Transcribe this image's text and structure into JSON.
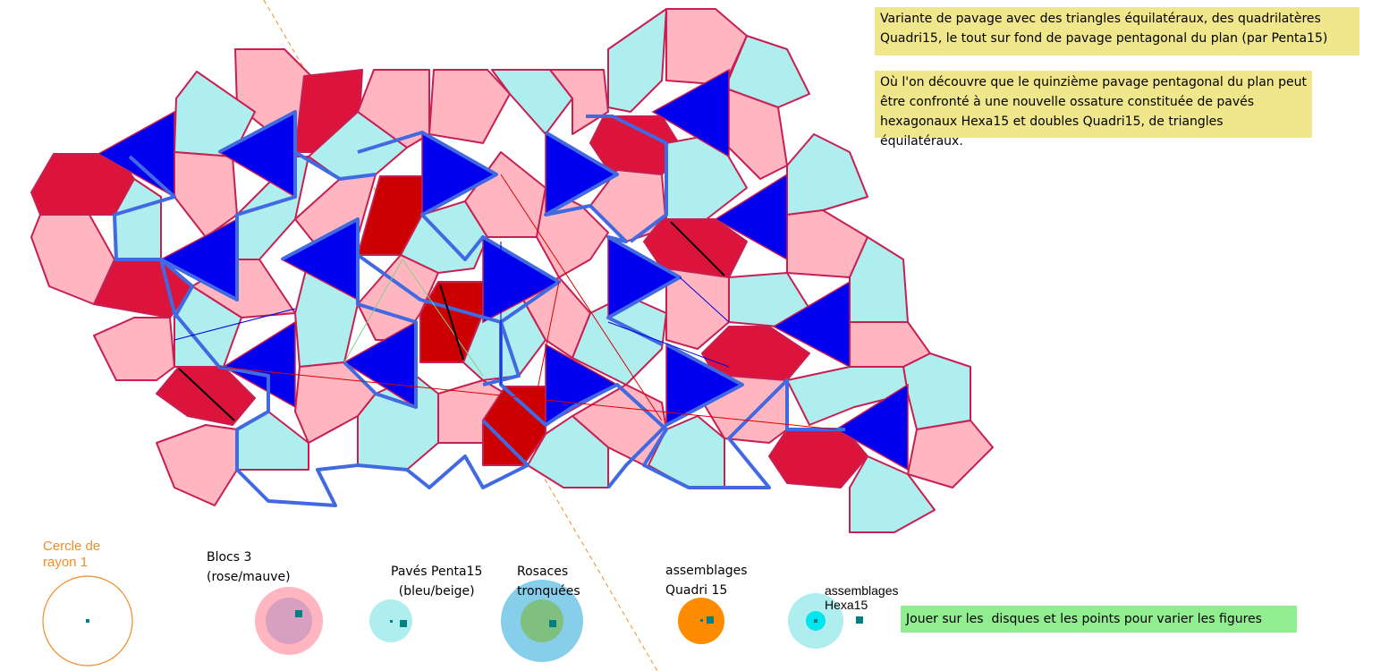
{
  "notes": {
    "main_line1": "Variante de pavage avec des triangles équilatéraux, des quadrilatères",
    "main_line2": "Quadri15, le tout sur fond de pavage pentagonal du plan (par Penta15)",
    "discovery_line1": "Où l'on découvre que le quinzième pavage pentagonal du plan peut",
    "discovery_line2": "être confronté à une nouvelle ossature constituée de pavés",
    "discovery_line3": "hexagonaux Hexa15 et doubles Quadri15, de triangles équilatéraux.",
    "hint": "Jouer sur les  disques et les points pour varier les figures"
  },
  "controls": {
    "cercle": {
      "line1": "Cercle de",
      "line2": "rayon 1"
    },
    "blocs": {
      "line1": "Blocs 3",
      "line2": "(rose/mauve)"
    },
    "penta": {
      "line1": "Pavés Penta15",
      "line2": "(bleu/beige)"
    },
    "rosaces": {
      "line1": "Rosaces",
      "line2": "tronquées"
    },
    "quadri": {
      "line1": "assemblages",
      "line2": "Quadri 15"
    },
    "hexa": {
      "line1": "assemblages",
      "line2": "Hexa15"
    }
  },
  "colors": {
    "turquoise_pentagon": "#afeeee",
    "pink_pentagon": "#ffb6c1",
    "crimson_quad": "#dc143c",
    "red_quad": "#cc0000",
    "blue_triangle": "#0000ee",
    "hexa_outline": "#4169e1",
    "tile_edge": "#c71f52",
    "circle_orange": "#f28c28",
    "note_yellow": "#f0e68c",
    "note_green": "#90ee90"
  }
}
